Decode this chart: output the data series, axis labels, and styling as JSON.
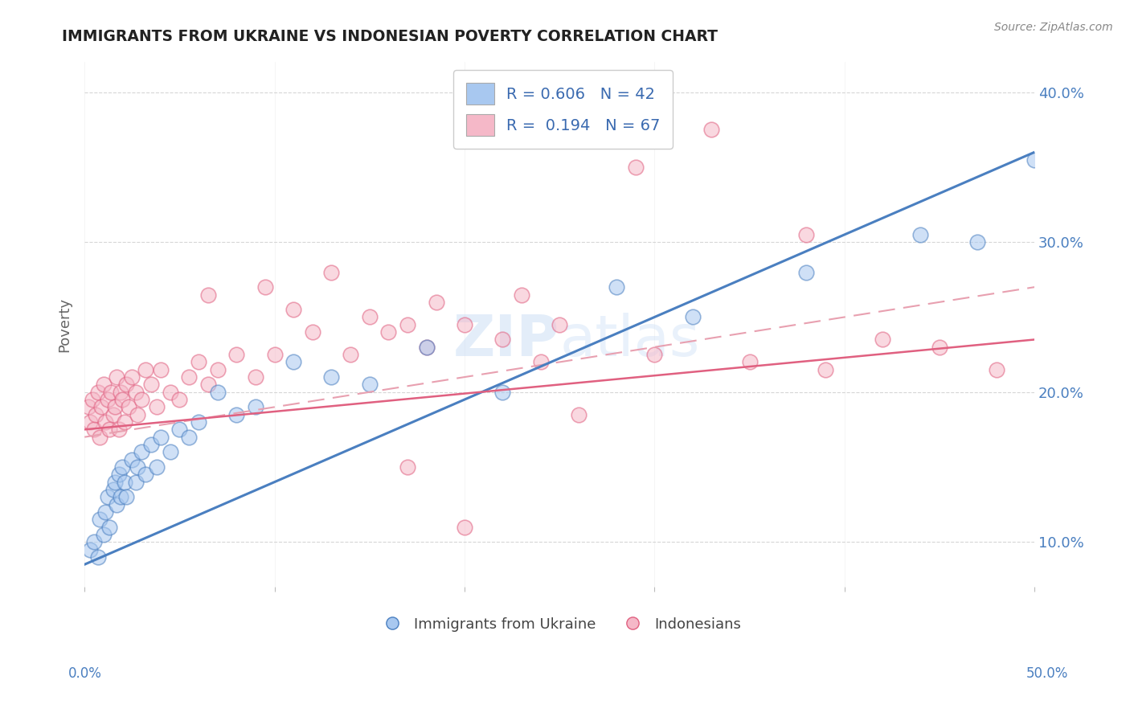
{
  "title": "IMMIGRANTS FROM UKRAINE VS INDONESIAN POVERTY CORRELATION CHART",
  "source": "Source: ZipAtlas.com",
  "ylabel": "Poverty",
  "xlim": [
    0,
    50
  ],
  "ylim": [
    7,
    42
  ],
  "yticks": [
    10,
    20,
    30,
    40
  ],
  "ytick_labels": [
    "10.0%",
    "20.0%",
    "30.0%",
    "40.0%"
  ],
  "grid_color": "#cccccc",
  "watermark_text": "ZIPatlas",
  "blue_color": "#a8c8f0",
  "pink_color": "#f5b8c8",
  "blue_line_color": "#4a7fc0",
  "pink_line_color": "#e06080",
  "pink_dashed_color": "#e8a0b0",
  "legend_R_blue": "0.606",
  "legend_N_blue": "42",
  "legend_R_pink": "0.194",
  "legend_N_pink": "67",
  "blue_line_start_y": 8.5,
  "blue_line_end_y": 36.0,
  "pink_solid_start_y": 17.5,
  "pink_solid_end_y": 23.5,
  "pink_dashed_start_y": 17.0,
  "pink_dashed_end_y": 27.0,
  "blue_scatter_x": [
    0.3,
    0.5,
    0.7,
    0.8,
    1.0,
    1.1,
    1.2,
    1.3,
    1.5,
    1.6,
    1.7,
    1.8,
    1.9,
    2.0,
    2.1,
    2.2,
    2.5,
    2.7,
    2.8,
    3.0,
    3.2,
    3.5,
    3.8,
    4.0,
    4.5,
    5.0,
    5.5,
    6.0,
    7.0,
    8.0,
    9.0,
    11.0,
    13.0,
    15.0,
    18.0,
    22.0,
    28.0,
    32.0,
    38.0,
    44.0,
    47.0,
    50.0
  ],
  "blue_scatter_y": [
    9.5,
    10.0,
    9.0,
    11.5,
    10.5,
    12.0,
    13.0,
    11.0,
    13.5,
    14.0,
    12.5,
    14.5,
    13.0,
    15.0,
    14.0,
    13.0,
    15.5,
    14.0,
    15.0,
    16.0,
    14.5,
    16.5,
    15.0,
    17.0,
    16.0,
    17.5,
    17.0,
    18.0,
    20.0,
    18.5,
    19.0,
    22.0,
    21.0,
    20.5,
    23.0,
    20.0,
    27.0,
    25.0,
    28.0,
    30.5,
    30.0,
    35.5
  ],
  "pink_scatter_x": [
    0.2,
    0.3,
    0.4,
    0.5,
    0.6,
    0.7,
    0.8,
    0.9,
    1.0,
    1.1,
    1.2,
    1.3,
    1.4,
    1.5,
    1.6,
    1.7,
    1.8,
    1.9,
    2.0,
    2.1,
    2.2,
    2.3,
    2.5,
    2.7,
    2.8,
    3.0,
    3.2,
    3.5,
    3.8,
    4.0,
    4.5,
    5.0,
    5.5,
    6.0,
    6.5,
    7.0,
    8.0,
    9.0,
    10.0,
    12.0,
    14.0,
    16.0,
    18.0,
    20.0,
    22.0,
    24.0,
    6.5,
    9.5,
    11.0,
    13.0,
    15.0,
    17.0,
    18.5,
    23.0,
    25.0,
    30.0,
    35.0,
    39.0,
    42.0,
    45.0,
    48.0,
    38.0,
    29.0,
    33.0,
    17.0,
    20.0,
    26.0
  ],
  "pink_scatter_y": [
    19.0,
    18.0,
    19.5,
    17.5,
    18.5,
    20.0,
    17.0,
    19.0,
    20.5,
    18.0,
    19.5,
    17.5,
    20.0,
    18.5,
    19.0,
    21.0,
    17.5,
    20.0,
    19.5,
    18.0,
    20.5,
    19.0,
    21.0,
    20.0,
    18.5,
    19.5,
    21.5,
    20.5,
    19.0,
    21.5,
    20.0,
    19.5,
    21.0,
    22.0,
    20.5,
    21.5,
    22.5,
    21.0,
    22.5,
    24.0,
    22.5,
    24.0,
    23.0,
    24.5,
    23.5,
    22.0,
    26.5,
    27.0,
    25.5,
    28.0,
    25.0,
    24.5,
    26.0,
    26.5,
    24.5,
    22.5,
    22.0,
    21.5,
    23.5,
    23.0,
    21.5,
    30.5,
    35.0,
    37.5,
    15.0,
    11.0,
    18.5
  ]
}
